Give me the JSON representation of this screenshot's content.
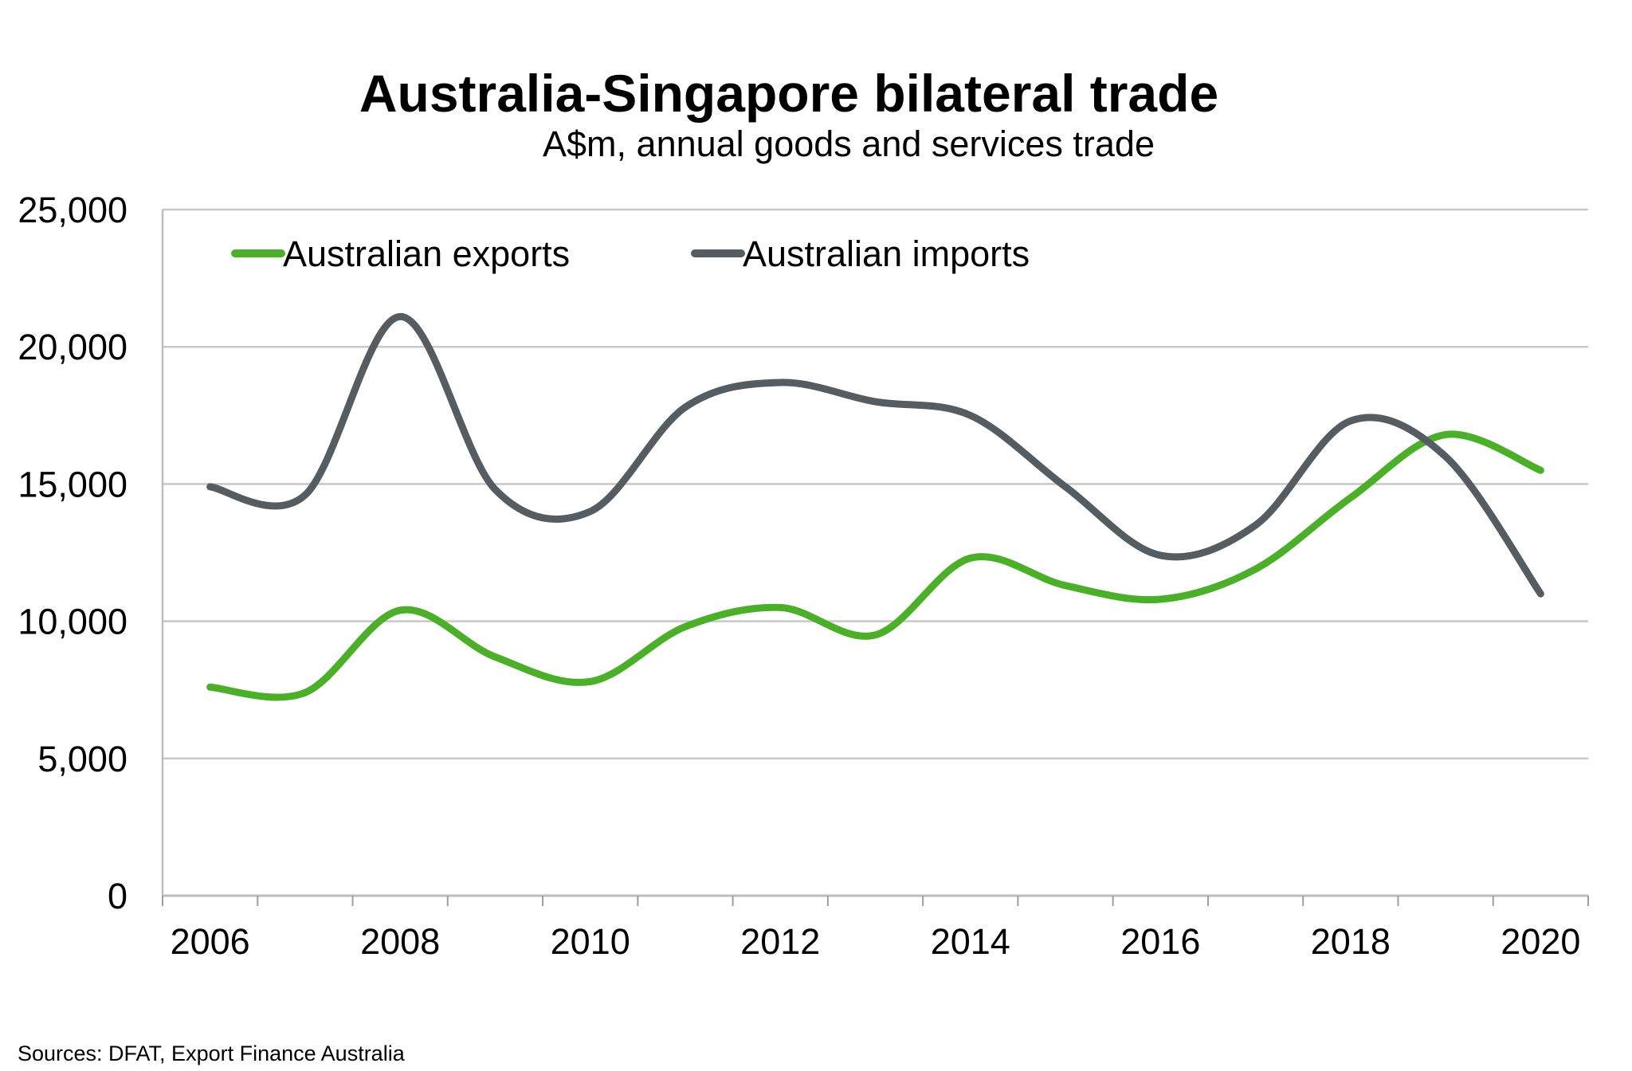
{
  "chart_data": {
    "type": "line",
    "title": "Australia-Singapore bilateral trade",
    "subtitle": "A$m, annual goods and services trade",
    "source": "Sources: DFAT, Export Finance Australia",
    "xlabel": "",
    "ylabel": "",
    "x": [
      2006,
      2007,
      2008,
      2009,
      2010,
      2011,
      2012,
      2013,
      2014,
      2015,
      2016,
      2017,
      2018,
      2019,
      2020
    ],
    "x_tick_labels": [
      "2006",
      "2008",
      "2010",
      "2012",
      "2014",
      "2016",
      "2018",
      "2020"
    ],
    "y_tick_labels": [
      "0",
      "5,000",
      "10,000",
      "15,000",
      "20,000",
      "25,000"
    ],
    "ylim": [
      0,
      25000
    ],
    "grid": "horizontal",
    "legend_position": "top-left",
    "smooth": true,
    "series": [
      {
        "name": "Australian exports",
        "color": "#4caf2a",
        "values": [
          7600,
          7400,
          10400,
          8700,
          7800,
          9800,
          10500,
          9500,
          12300,
          11300,
          10800,
          11900,
          14500,
          16800,
          15500
        ]
      },
      {
        "name": "Australian imports",
        "color": "#555d63",
        "values": [
          14900,
          14600,
          21100,
          14800,
          14000,
          17800,
          18700,
          18000,
          17500,
          14900,
          12400,
          13500,
          17300,
          16000,
          11000
        ]
      }
    ]
  }
}
